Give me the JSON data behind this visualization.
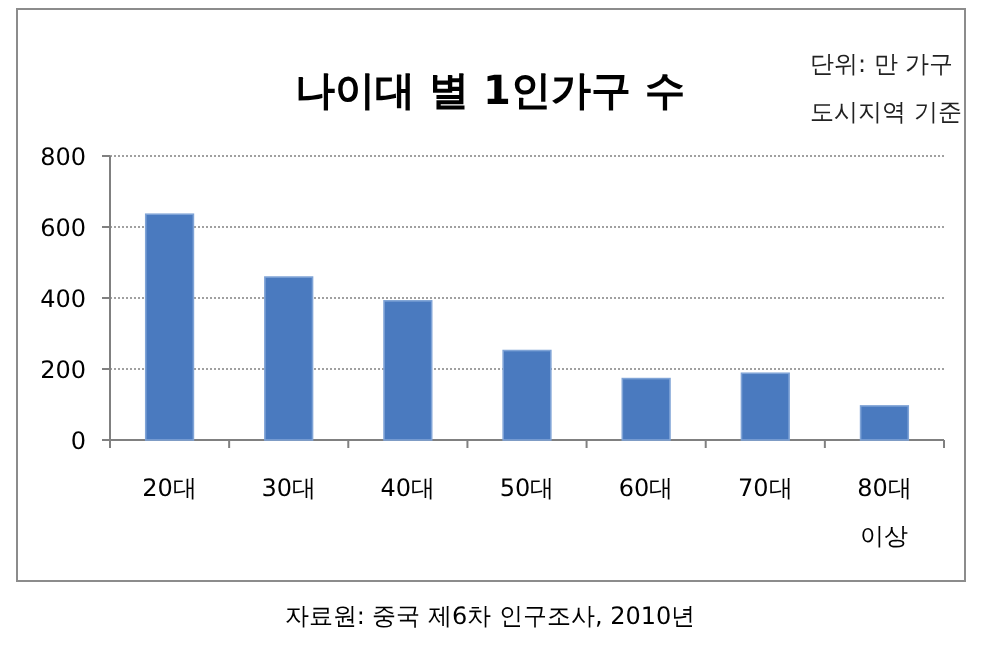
{
  "chart_data": {
    "type": "bar",
    "title": "나이대 별 1인가구 수",
    "subtitle": "단위: 만 가구\n도시지역 기준",
    "categories": [
      "20대",
      "30대",
      "40대",
      "50대",
      "60대",
      "70대",
      "80대 이상"
    ],
    "values": [
      636,
      459,
      392,
      252,
      173,
      188,
      96
    ],
    "color": "#4a7abf",
    "ylim": [
      0,
      800
    ],
    "yticks": [
      0,
      200,
      400,
      600,
      800
    ],
    "grid": "y",
    "annotations": [
      "자료원: 중국 제6차 인구조사, 2010년"
    ]
  }
}
